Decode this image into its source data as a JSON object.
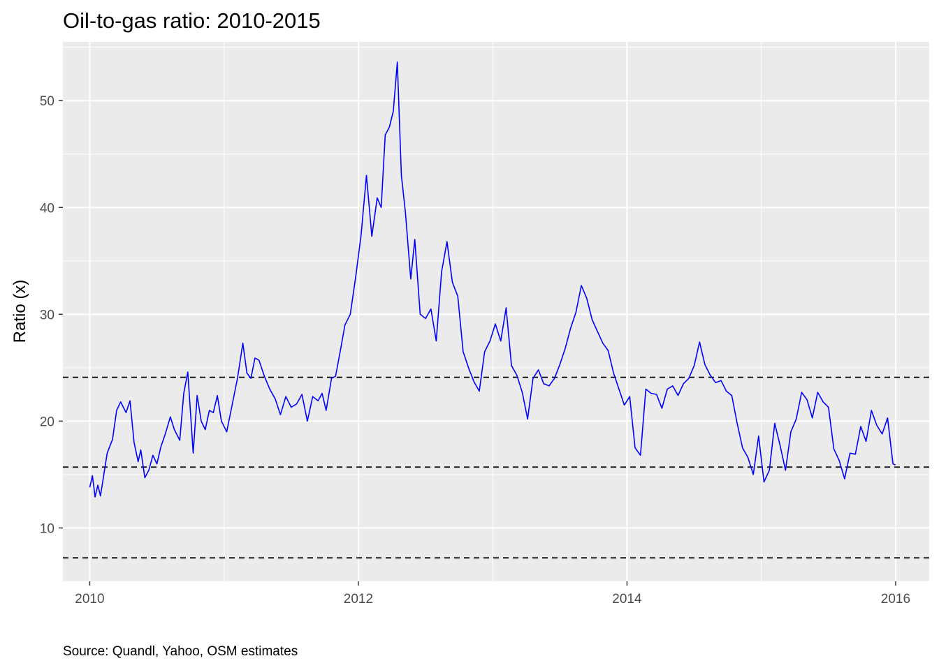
{
  "chart_data": {
    "type": "line",
    "title": "Oil-to-gas ratio: 2010-2015",
    "xlabel": "",
    "ylabel": "Ratio (x)",
    "caption": "Source: Quandl, Yahoo, OSM estimates",
    "xlim": [
      2009.8,
      2016.25
    ],
    "ylim": [
      5,
      55.5
    ],
    "x_ticks": [
      {
        "value": 2010,
        "label": "2010"
      },
      {
        "value": 2012,
        "label": "2012"
      },
      {
        "value": 2014,
        "label": "2014"
      },
      {
        "value": 2016,
        "label": "2016"
      }
    ],
    "y_ticks": [
      {
        "value": 10,
        "label": "10"
      },
      {
        "value": 20,
        "label": "20"
      },
      {
        "value": 30,
        "label": "30"
      },
      {
        "value": 40,
        "label": "40"
      },
      {
        "value": 50,
        "label": "50"
      }
    ],
    "grid": true,
    "colors": {
      "panel": "#ebebeb",
      "grid": "#ffffff",
      "line": "#0000ff",
      "reference": "#000000"
    },
    "reference_lines": [
      24.1,
      15.7,
      7.2
    ],
    "series": [
      {
        "x": [
          2010.0,
          2010.02,
          2010.04,
          2010.06,
          2010.08,
          2010.1,
          2010.13,
          2010.17,
          2010.2,
          2010.23,
          2010.27,
          2010.3,
          2010.33,
          2010.36,
          2010.38,
          2010.41,
          2010.44,
          2010.47,
          2010.5,
          2010.53,
          2010.56,
          2010.6,
          2010.63,
          2010.67,
          2010.7,
          2010.73,
          2010.77,
          2010.8,
          2010.83,
          2010.86,
          2010.89,
          2010.92,
          2010.95,
          2010.98,
          2011.02,
          2011.06,
          2011.1,
          2011.14,
          2011.17,
          2011.2,
          2011.23,
          2011.26,
          2011.3,
          2011.34,
          2011.38,
          2011.42,
          2011.46,
          2011.5,
          2011.54,
          2011.58,
          2011.62,
          2011.66,
          2011.7,
          2011.73,
          2011.76,
          2011.8,
          2011.83,
          2011.87,
          2011.9,
          2011.94,
          2011.98,
          2012.02,
          2012.06,
          2012.1,
          2012.14,
          2012.17,
          2012.2,
          2012.23,
          2012.26,
          2012.29,
          2012.32,
          2012.35,
          2012.39,
          2012.42,
          2012.46,
          2012.5,
          2012.54,
          2012.58,
          2012.62,
          2012.66,
          2012.7,
          2012.74,
          2012.78,
          2012.82,
          2012.86,
          2012.9,
          2012.94,
          2012.98,
          2013.02,
          2013.06,
          2013.1,
          2013.14,
          2013.18,
          2013.22,
          2013.26,
          2013.3,
          2013.34,
          2013.38,
          2013.42,
          2013.46,
          2013.5,
          2013.54,
          2013.58,
          2013.62,
          2013.66,
          2013.7,
          2013.74,
          2013.78,
          2013.82,
          2013.86,
          2013.9,
          2013.94,
          2013.98,
          2014.02,
          2014.06,
          2014.1,
          2014.14,
          2014.18,
          2014.22,
          2014.26,
          2014.3,
          2014.34,
          2014.38,
          2014.42,
          2014.46,
          2014.5,
          2014.54,
          2014.58,
          2014.62,
          2014.66,
          2014.7,
          2014.74,
          2014.78,
          2014.82,
          2014.86,
          2014.9,
          2014.94,
          2014.98,
          2015.02,
          2015.06,
          2015.1,
          2015.14,
          2015.18,
          2015.22,
          2015.26,
          2015.3,
          2015.34,
          2015.38,
          2015.42,
          2015.46,
          2015.5,
          2015.54,
          2015.58,
          2015.62,
          2015.66,
          2015.7,
          2015.74,
          2015.78,
          2015.82,
          2015.86,
          2015.9,
          2015.94,
          2015.98,
          2016.0
        ],
        "values": [
          13.8,
          14.9,
          12.9,
          14.0,
          13.0,
          14.6,
          17.0,
          18.3,
          21.0,
          21.8,
          20.8,
          21.9,
          18.0,
          16.2,
          17.3,
          14.7,
          15.4,
          16.8,
          16.0,
          17.6,
          18.7,
          20.4,
          19.2,
          18.2,
          22.6,
          24.6,
          17.0,
          22.4,
          20.0,
          19.2,
          21.0,
          20.8,
          22.4,
          20.0,
          19.0,
          21.5,
          24.0,
          27.3,
          24.5,
          24.0,
          25.9,
          25.7,
          24.2,
          23.0,
          22.1,
          20.6,
          22.3,
          21.3,
          21.6,
          22.5,
          20.0,
          22.3,
          21.9,
          22.6,
          21.0,
          24.0,
          24.2,
          26.9,
          29.0,
          30.0,
          33.5,
          37.4,
          43.0,
          37.3,
          40.9,
          40.0,
          46.8,
          47.5,
          49.0,
          53.6,
          43.0,
          39.6,
          33.3,
          37.0,
          30.0,
          29.6,
          30.5,
          27.5,
          34.0,
          36.8,
          33.0,
          31.7,
          26.5,
          25.0,
          23.7,
          22.8,
          26.5,
          27.5,
          29.1,
          27.5,
          30.6,
          25.2,
          24.3,
          22.7,
          20.2,
          24.0,
          24.8,
          23.5,
          23.3,
          24.0,
          25.3,
          26.8,
          28.7,
          30.2,
          32.7,
          31.5,
          29.5,
          28.4,
          27.3,
          26.6,
          24.5,
          23.0,
          21.5,
          22.3,
          17.5,
          16.8,
          23.0,
          22.6,
          22.5,
          21.2,
          23.0,
          23.3,
          22.4,
          23.5,
          24.0,
          25.2,
          27.4,
          25.3,
          24.3,
          23.6,
          23.8,
          22.8,
          22.4,
          19.8,
          17.5,
          16.6,
          15.0,
          18.6,
          14.3,
          15.4,
          19.8,
          17.7,
          15.4,
          19.0,
          20.2,
          22.7,
          22.0,
          20.3,
          22.7,
          21.8,
          21.3,
          17.4,
          16.3,
          14.6,
          17.0,
          16.9,
          19.5,
          18.1,
          21.0,
          19.6,
          18.8,
          20.3,
          16.0,
          15.9
        ]
      }
    ]
  }
}
